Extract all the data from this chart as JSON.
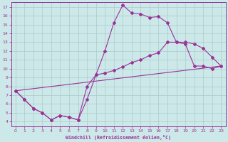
{
  "xlabel": "Windchill (Refroidissement éolien,°C)",
  "bg_color": "#cce8e8",
  "line_color": "#993399",
  "grid_color": "#aacccc",
  "xlim": [
    -0.5,
    23.5
  ],
  "ylim": [
    3.5,
    17.5
  ],
  "xticks": [
    0,
    1,
    2,
    3,
    4,
    5,
    6,
    7,
    8,
    9,
    10,
    11,
    12,
    13,
    14,
    15,
    16,
    17,
    18,
    19,
    20,
    21,
    22,
    23
  ],
  "yticks": [
    4,
    5,
    6,
    7,
    8,
    9,
    10,
    11,
    12,
    13,
    14,
    15,
    16,
    17
  ],
  "line1_x": [
    0,
    1,
    2,
    3,
    4,
    5,
    6,
    7,
    8,
    9,
    10,
    11,
    12,
    13,
    14,
    15,
    16,
    17,
    18,
    19,
    20,
    21,
    22,
    23
  ],
  "line1_y": [
    7.5,
    6.5,
    5.5,
    5.0,
    4.2,
    4.7,
    4.5,
    4.2,
    6.5,
    9.3,
    12.0,
    15.2,
    17.2,
    16.3,
    16.2,
    15.8,
    15.9,
    15.2,
    13.0,
    13.0,
    12.8,
    12.3,
    11.3,
    10.3
  ],
  "line2_x": [
    0,
    1,
    2,
    3,
    4,
    5,
    6,
    7,
    8,
    9,
    10,
    11,
    12,
    13,
    14,
    15,
    16,
    17,
    18,
    19,
    20,
    21,
    22,
    23
  ],
  "line2_y": [
    7.5,
    6.5,
    5.5,
    5.0,
    4.2,
    4.7,
    4.5,
    4.2,
    8.0,
    9.3,
    9.5,
    9.8,
    10.2,
    10.7,
    11.0,
    11.5,
    11.8,
    13.0,
    13.0,
    12.8,
    10.3,
    10.3,
    10.0,
    10.3
  ],
  "line3_x": [
    0,
    23
  ],
  "line3_y": [
    7.5,
    10.3
  ]
}
